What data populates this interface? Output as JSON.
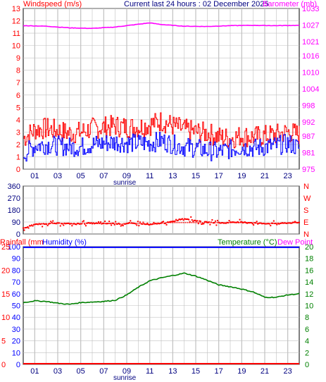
{
  "header": {
    "wind_title": "Windspeed (m/s)",
    "center_title": "Current last 24 hours : 02 December 2025",
    "baro_title": "Barometer (mb)"
  },
  "colors": {
    "windspeed": "#ff0000",
    "windavg": "#0000ff",
    "barometer": "#ff00ff",
    "direction": "#ff0000",
    "rainfall": "#ff0000",
    "humidity": "#0000ff",
    "temperature": "#008000",
    "dewpoint": "#ff00ff",
    "grid": "#c0c0c0",
    "axis_wind": "#ff0000",
    "axis_baro": "#ff00ff",
    "axis_rh": "#0000ff",
    "axis_temp": "#008000",
    "axis_rain": "#ff0000"
  },
  "x_axis": {
    "tick_labels": [
      "01",
      "03",
      "05",
      "07",
      "09",
      "11",
      "13",
      "15",
      "17",
      "19",
      "21",
      "23"
    ],
    "sunrise_label": "sunrise"
  },
  "chart_data": [
    {
      "type": "line",
      "name": "wind_baro",
      "y_left": {
        "title": "Windspeed (m/s)",
        "range": [
          0,
          13
        ],
        "ticks": [
          0,
          1,
          2,
          3,
          4,
          5,
          6,
          7,
          8,
          9,
          10,
          11,
          12,
          13
        ]
      },
      "y_right": {
        "title": "Barometer (mb)",
        "range": [
          975,
          1033
        ],
        "ticks": [
          975,
          981,
          987,
          992,
          998,
          1004,
          1010,
          1016,
          1021,
          1027,
          1033
        ]
      },
      "grid": true,
      "series": [
        {
          "name": "Windspeed",
          "axis": "left",
          "x": [
            0,
            1,
            2,
            3,
            4,
            5,
            6,
            7,
            8,
            9,
            10,
            11,
            12,
            13,
            14,
            15,
            16,
            17,
            18,
            19,
            20,
            21,
            22,
            23,
            24
          ],
          "y": [
            2.5,
            3.2,
            3.3,
            3.1,
            2.9,
            3.0,
            3.3,
            3.4,
            3.5,
            3.4,
            3.4,
            3.6,
            3.9,
            3.5,
            3.2,
            3.0,
            2.9,
            2.6,
            2.5,
            2.7,
            2.6,
            2.7,
            2.8,
            3.0,
            2.8
          ]
        },
        {
          "name": "Windspeed average",
          "axis": "left",
          "x": [
            0,
            1,
            2,
            3,
            4,
            5,
            6,
            7,
            8,
            9,
            10,
            11,
            12,
            13,
            14,
            15,
            16,
            17,
            18,
            19,
            20,
            21,
            22,
            23,
            24
          ],
          "y": [
            1.2,
            1.9,
            2.0,
            1.9,
            1.8,
            1.8,
            2.0,
            2.1,
            2.2,
            2.1,
            2.1,
            2.1,
            2.3,
            2.0,
            1.8,
            1.7,
            1.5,
            1.4,
            1.6,
            1.8,
            1.7,
            1.8,
            1.9,
            2.1,
            1.7
          ]
        },
        {
          "name": "Barometer",
          "axis": "right",
          "x": [
            0,
            2,
            4,
            6,
            8,
            10,
            11,
            12,
            14,
            16,
            18,
            20,
            22,
            24
          ],
          "y": [
            1026.8,
            1026.6,
            1026.0,
            1025.8,
            1026.3,
            1027.3,
            1027.8,
            1027.2,
            1026.6,
            1026.5,
            1026.8,
            1026.9,
            1026.8,
            1026.9
          ]
        }
      ]
    },
    {
      "type": "scatter",
      "name": "wind_direction",
      "y_left": {
        "range": [
          0,
          360
        ],
        "ticks": [
          0,
          90,
          180,
          270,
          360
        ]
      },
      "y_right": {
        "labels": [
          "N",
          "E",
          "S",
          "W",
          "N"
        ]
      },
      "grid": true,
      "series": [
        {
          "name": "Wind direction",
          "x": [
            0.2,
            0.8,
            1.5,
            2.3,
            3.1,
            3.9,
            4.6,
            5.4,
            6.2,
            7.0,
            7.8,
            8.6,
            9.4,
            10.2,
            11.0,
            11.8,
            12.3,
            12.8,
            13.3,
            13.6,
            14.0,
            14.5,
            15.0,
            15.6,
            16.2,
            16.8,
            17.5,
            18.2,
            19.0,
            19.8,
            20.6,
            21.4,
            22.2,
            23.0,
            23.6
          ],
          "y": [
            45,
            70,
            75,
            78,
            80,
            78,
            75,
            82,
            80,
            78,
            80,
            75,
            80,
            78,
            70,
            80,
            82,
            90,
            100,
            110,
            115,
            110,
            100,
            90,
            88,
            85,
            82,
            90,
            88,
            85,
            80,
            78,
            80,
            82,
            85
          ]
        }
      ]
    },
    {
      "type": "line",
      "name": "temp_humidity",
      "y_left": {
        "title": "Rainfall (mm)",
        "range": [
          0,
          25
        ]
      },
      "y_left_inner": {
        "title": "Humidity (%)",
        "range": [
          0,
          100
        ],
        "ticks": [
          0,
          10,
          20,
          30,
          40,
          50,
          60,
          70,
          80,
          90,
          100
        ]
      },
      "y_right": {
        "title": "Temperature (°C)",
        "range": [
          0,
          20
        ],
        "ticks": [
          0,
          2,
          4,
          6,
          8,
          10,
          12,
          14,
          16,
          18,
          20
        ]
      },
      "legend_extra": "Dew Point",
      "grid": true,
      "series": [
        {
          "name": "Temperature",
          "axis": "right",
          "x": [
            0,
            1,
            2,
            3,
            4,
            5,
            6,
            7,
            8,
            9,
            10,
            11,
            12,
            13,
            14,
            15,
            16,
            17,
            18,
            19,
            20,
            21,
            22,
            23,
            24
          ],
          "y": [
            10.5,
            10.8,
            10.7,
            10.4,
            10.2,
            10.5,
            10.6,
            10.7,
            10.9,
            11.8,
            13.1,
            14.2,
            14.7,
            15.1,
            15.5,
            15.0,
            14.3,
            13.5,
            13.2,
            12.8,
            12.3,
            11.4,
            11.4,
            11.8,
            12.0
          ]
        },
        {
          "name": "Humidity",
          "axis": "left_inner",
          "x": [
            0,
            24
          ],
          "y": [
            99.5,
            99.5
          ]
        },
        {
          "name": "Rainfall",
          "axis": "left",
          "x": [
            0,
            24
          ],
          "y": [
            0,
            0
          ]
        }
      ]
    }
  ]
}
